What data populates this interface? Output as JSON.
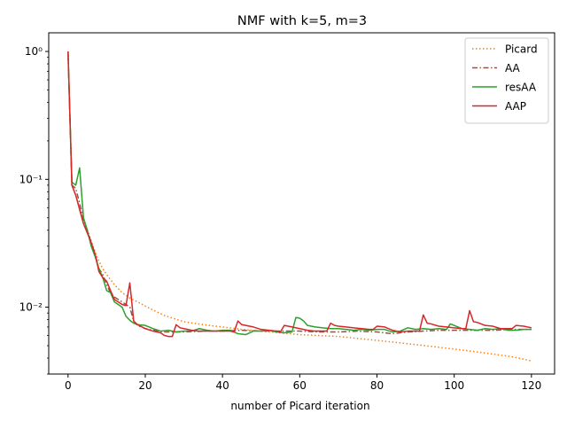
{
  "chart_data": {
    "type": "line",
    "title": "NMF with k=5, m=3",
    "xlabel": "number of Picard iteration",
    "ylabel": "",
    "xlim": [
      -5,
      126
    ],
    "ylim": [
      0.003,
      1.4
    ],
    "yscale": "log",
    "grid": false,
    "legend_position": "top-right",
    "x_ticks": [
      0,
      20,
      40,
      60,
      80,
      100,
      120
    ],
    "y_ticks": [
      0.01,
      0.1,
      1
    ],
    "y_tick_labels": [
      "10⁻²",
      "10⁻¹",
      "10⁰"
    ],
    "series": [
      {
        "name": "Picard",
        "color": "#ff7f0e",
        "style": "dotted",
        "points": [
          [
            0,
            1.0
          ],
          [
            1,
            0.09
          ],
          [
            2,
            0.075
          ],
          [
            3,
            0.06
          ],
          [
            4,
            0.048
          ],
          [
            5,
            0.04
          ],
          [
            6,
            0.033
          ],
          [
            7,
            0.027
          ],
          [
            8,
            0.023
          ],
          [
            9,
            0.02
          ],
          [
            10,
            0.018
          ],
          [
            12,
            0.015
          ],
          [
            14,
            0.013
          ],
          [
            16,
            0.0118
          ],
          [
            18,
            0.011
          ],
          [
            20,
            0.0102
          ],
          [
            22,
            0.0095
          ],
          [
            25,
            0.0086
          ],
          [
            30,
            0.0077
          ],
          [
            35,
            0.0073
          ],
          [
            40,
            0.007
          ],
          [
            45,
            0.0067
          ],
          [
            50,
            0.0065
          ],
          [
            55,
            0.0063
          ],
          [
            60,
            0.0061
          ],
          [
            65,
            0.006
          ],
          [
            70,
            0.0059
          ],
          [
            75,
            0.0057
          ],
          [
            80,
            0.0055
          ],
          [
            85,
            0.0053
          ],
          [
            90,
            0.0051
          ],
          [
            95,
            0.0049
          ],
          [
            100,
            0.0047
          ],
          [
            105,
            0.0045
          ],
          [
            110,
            0.0043
          ],
          [
            115,
            0.0041
          ],
          [
            120,
            0.0038
          ]
        ]
      },
      {
        "name": "AA",
        "color": "#8c564b",
        "style": "dashdot",
        "points": [
          [
            0,
            1.0
          ],
          [
            1,
            0.09
          ],
          [
            2,
            0.085
          ],
          [
            3,
            0.065
          ],
          [
            4,
            0.048
          ],
          [
            5,
            0.04
          ],
          [
            6,
            0.032
          ],
          [
            7,
            0.026
          ],
          [
            8,
            0.02
          ],
          [
            9,
            0.018
          ],
          [
            10,
            0.015
          ],
          [
            11,
            0.013
          ],
          [
            12,
            0.012
          ],
          [
            14,
            0.011
          ],
          [
            15,
            0.0105
          ],
          [
            16,
            0.01
          ],
          [
            17,
            0.0078
          ],
          [
            18,
            0.0072
          ],
          [
            20,
            0.0068
          ],
          [
            22,
            0.0066
          ],
          [
            25,
            0.0064
          ],
          [
            30,
            0.0064
          ],
          [
            35,
            0.0065
          ],
          [
            40,
            0.0065
          ],
          [
            45,
            0.0066
          ],
          [
            50,
            0.0065
          ],
          [
            55,
            0.0065
          ],
          [
            60,
            0.0065
          ],
          [
            65,
            0.0064
          ],
          [
            70,
            0.0064
          ],
          [
            75,
            0.0065
          ],
          [
            80,
            0.0064
          ],
          [
            84,
            0.0062
          ],
          [
            88,
            0.0064
          ],
          [
            92,
            0.0065
          ],
          [
            96,
            0.0066
          ],
          [
            100,
            0.0066
          ],
          [
            105,
            0.0066
          ],
          [
            110,
            0.0066
          ],
          [
            115,
            0.0067
          ],
          [
            120,
            0.0067
          ]
        ]
      },
      {
        "name": "resAA",
        "color": "#2ca02c",
        "style": "solid",
        "points": [
          [
            0,
            1.0
          ],
          [
            1,
            0.095
          ],
          [
            2,
            0.09
          ],
          [
            3,
            0.123
          ],
          [
            4,
            0.05
          ],
          [
            5,
            0.04
          ],
          [
            6,
            0.03
          ],
          [
            7,
            0.025
          ],
          [
            8,
            0.02
          ],
          [
            9,
            0.017
          ],
          [
            10,
            0.0135
          ],
          [
            11,
            0.013
          ],
          [
            12,
            0.011
          ],
          [
            13,
            0.0105
          ],
          [
            14,
            0.01
          ],
          [
            15,
            0.0085
          ],
          [
            16,
            0.0079
          ],
          [
            17,
            0.0075
          ],
          [
            18,
            0.0073
          ],
          [
            20,
            0.0072
          ],
          [
            22,
            0.0068
          ],
          [
            24,
            0.0065
          ],
          [
            26,
            0.0066
          ],
          [
            28,
            0.0064
          ],
          [
            30,
            0.0065
          ],
          [
            32,
            0.0065
          ],
          [
            34,
            0.0068
          ],
          [
            36,
            0.0066
          ],
          [
            38,
            0.0065
          ],
          [
            40,
            0.0066
          ],
          [
            42,
            0.0066
          ],
          [
            44,
            0.0062
          ],
          [
            46,
            0.0061
          ],
          [
            48,
            0.0065
          ],
          [
            50,
            0.0065
          ],
          [
            52,
            0.0066
          ],
          [
            54,
            0.0064
          ],
          [
            56,
            0.0063
          ],
          [
            58,
            0.0064
          ],
          [
            59,
            0.0083
          ],
          [
            60,
            0.0082
          ],
          [
            61,
            0.0078
          ],
          [
            62,
            0.0072
          ],
          [
            64,
            0.007
          ],
          [
            66,
            0.0069
          ],
          [
            68,
            0.0068
          ],
          [
            70,
            0.0068
          ],
          [
            72,
            0.0067
          ],
          [
            74,
            0.0066
          ],
          [
            76,
            0.0067
          ],
          [
            78,
            0.0066
          ],
          [
            80,
            0.0067
          ],
          [
            82,
            0.0067
          ],
          [
            84,
            0.0064
          ],
          [
            86,
            0.0065
          ],
          [
            88,
            0.0069
          ],
          [
            90,
            0.0067
          ],
          [
            92,
            0.0068
          ],
          [
            94,
            0.0067
          ],
          [
            96,
            0.0068
          ],
          [
            98,
            0.0067
          ],
          [
            99,
            0.0074
          ],
          [
            100,
            0.0072
          ],
          [
            102,
            0.0068
          ],
          [
            104,
            0.0067
          ],
          [
            106,
            0.0066
          ],
          [
            108,
            0.0068
          ],
          [
            110,
            0.0067
          ],
          [
            112,
            0.0068
          ],
          [
            114,
            0.0066
          ],
          [
            116,
            0.0066
          ],
          [
            118,
            0.0067
          ],
          [
            120,
            0.0067
          ]
        ]
      },
      {
        "name": "AAP",
        "color": "#d62728",
        "style": "solid",
        "points": [
          [
            0,
            1.0
          ],
          [
            1,
            0.09
          ],
          [
            2,
            0.075
          ],
          [
            3,
            0.058
          ],
          [
            4,
            0.045
          ],
          [
            5,
            0.038
          ],
          [
            6,
            0.032
          ],
          [
            7,
            0.026
          ],
          [
            8,
            0.019
          ],
          [
            9,
            0.017
          ],
          [
            10,
            0.016
          ],
          [
            11,
            0.0135
          ],
          [
            12,
            0.0115
          ],
          [
            13,
            0.011
          ],
          [
            14,
            0.0105
          ],
          [
            15,
            0.0103
          ],
          [
            16,
            0.0155
          ],
          [
            17,
            0.0078
          ],
          [
            18,
            0.0073
          ],
          [
            20,
            0.0068
          ],
          [
            22,
            0.0065
          ],
          [
            24,
            0.0063
          ],
          [
            25,
            0.006
          ],
          [
            26,
            0.0059
          ],
          [
            27,
            0.0059
          ],
          [
            28,
            0.0073
          ],
          [
            29,
            0.0069
          ],
          [
            30,
            0.0068
          ],
          [
            32,
            0.0066
          ],
          [
            34,
            0.0065
          ],
          [
            36,
            0.0065
          ],
          [
            38,
            0.0065
          ],
          [
            40,
            0.0065
          ],
          [
            42,
            0.0065
          ],
          [
            43,
            0.0064
          ],
          [
            44,
            0.0078
          ],
          [
            45,
            0.0073
          ],
          [
            46,
            0.0072
          ],
          [
            48,
            0.007
          ],
          [
            50,
            0.0067
          ],
          [
            52,
            0.0066
          ],
          [
            54,
            0.0065
          ],
          [
            55,
            0.0064
          ],
          [
            56,
            0.0072
          ],
          [
            58,
            0.007
          ],
          [
            60,
            0.0068
          ],
          [
            62,
            0.0066
          ],
          [
            64,
            0.0065
          ],
          [
            66,
            0.0065
          ],
          [
            67,
            0.0065
          ],
          [
            68,
            0.0075
          ],
          [
            69,
            0.0072
          ],
          [
            70,
            0.0071
          ],
          [
            72,
            0.007
          ],
          [
            74,
            0.0069
          ],
          [
            76,
            0.0068
          ],
          [
            78,
            0.0067
          ],
          [
            79,
            0.0067
          ],
          [
            80,
            0.0071
          ],
          [
            82,
            0.007
          ],
          [
            84,
            0.0066
          ],
          [
            86,
            0.0064
          ],
          [
            88,
            0.0065
          ],
          [
            90,
            0.0065
          ],
          [
            91,
            0.0065
          ],
          [
            92,
            0.0087
          ],
          [
            93,
            0.0075
          ],
          [
            94,
            0.0074
          ],
          [
            96,
            0.0071
          ],
          [
            98,
            0.007
          ],
          [
            100,
            0.0069
          ],
          [
            102,
            0.0068
          ],
          [
            103,
            0.0068
          ],
          [
            104,
            0.0094
          ],
          [
            105,
            0.0077
          ],
          [
            106,
            0.0076
          ],
          [
            108,
            0.0072
          ],
          [
            110,
            0.0071
          ],
          [
            112,
            0.0068
          ],
          [
            114,
            0.0068
          ],
          [
            115,
            0.0068
          ],
          [
            116,
            0.0072
          ],
          [
            118,
            0.0071
          ],
          [
            120,
            0.0069
          ]
        ]
      }
    ]
  }
}
